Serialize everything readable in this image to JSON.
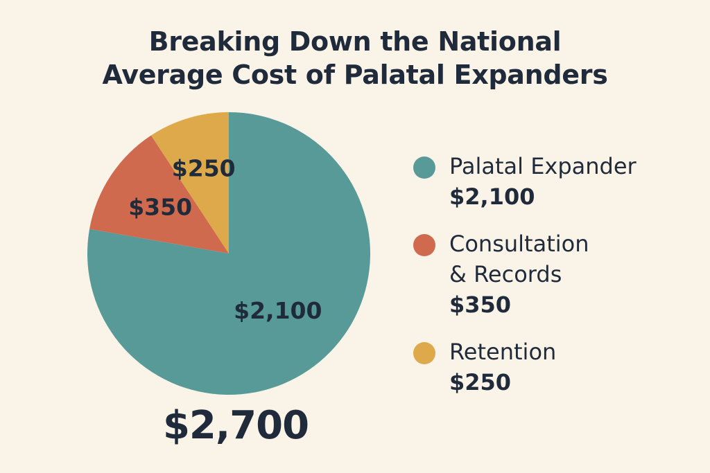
{
  "title": {
    "line1": "Breaking Down the National",
    "line2": "Average Cost of Palatal Expanders"
  },
  "total_label": "$2,700",
  "chart_data": {
    "type": "pie",
    "title": "Breaking Down the National Average Cost of Palatal Expanders",
    "total": 2700,
    "slices": [
      {
        "name": "Palatal Expander",
        "value": 2100,
        "label": "$2,100",
        "color": "#589a98"
      },
      {
        "name": "Consultation & Records",
        "value": 350,
        "label": "$350",
        "color": "#cf6a4f"
      },
      {
        "name": "Retention",
        "value": 250,
        "label": "$250",
        "color": "#dda94a"
      }
    ],
    "legend_position": "right"
  },
  "legend": [
    {
      "name": "Palatal Expander",
      "value": "$2,100",
      "color": "#589a98"
    },
    {
      "name": "Consultation\n& Records",
      "value": "$350",
      "color": "#cf6a4f"
    },
    {
      "name": "Retention",
      "value": "$250",
      "color": "#dda94a"
    }
  ]
}
